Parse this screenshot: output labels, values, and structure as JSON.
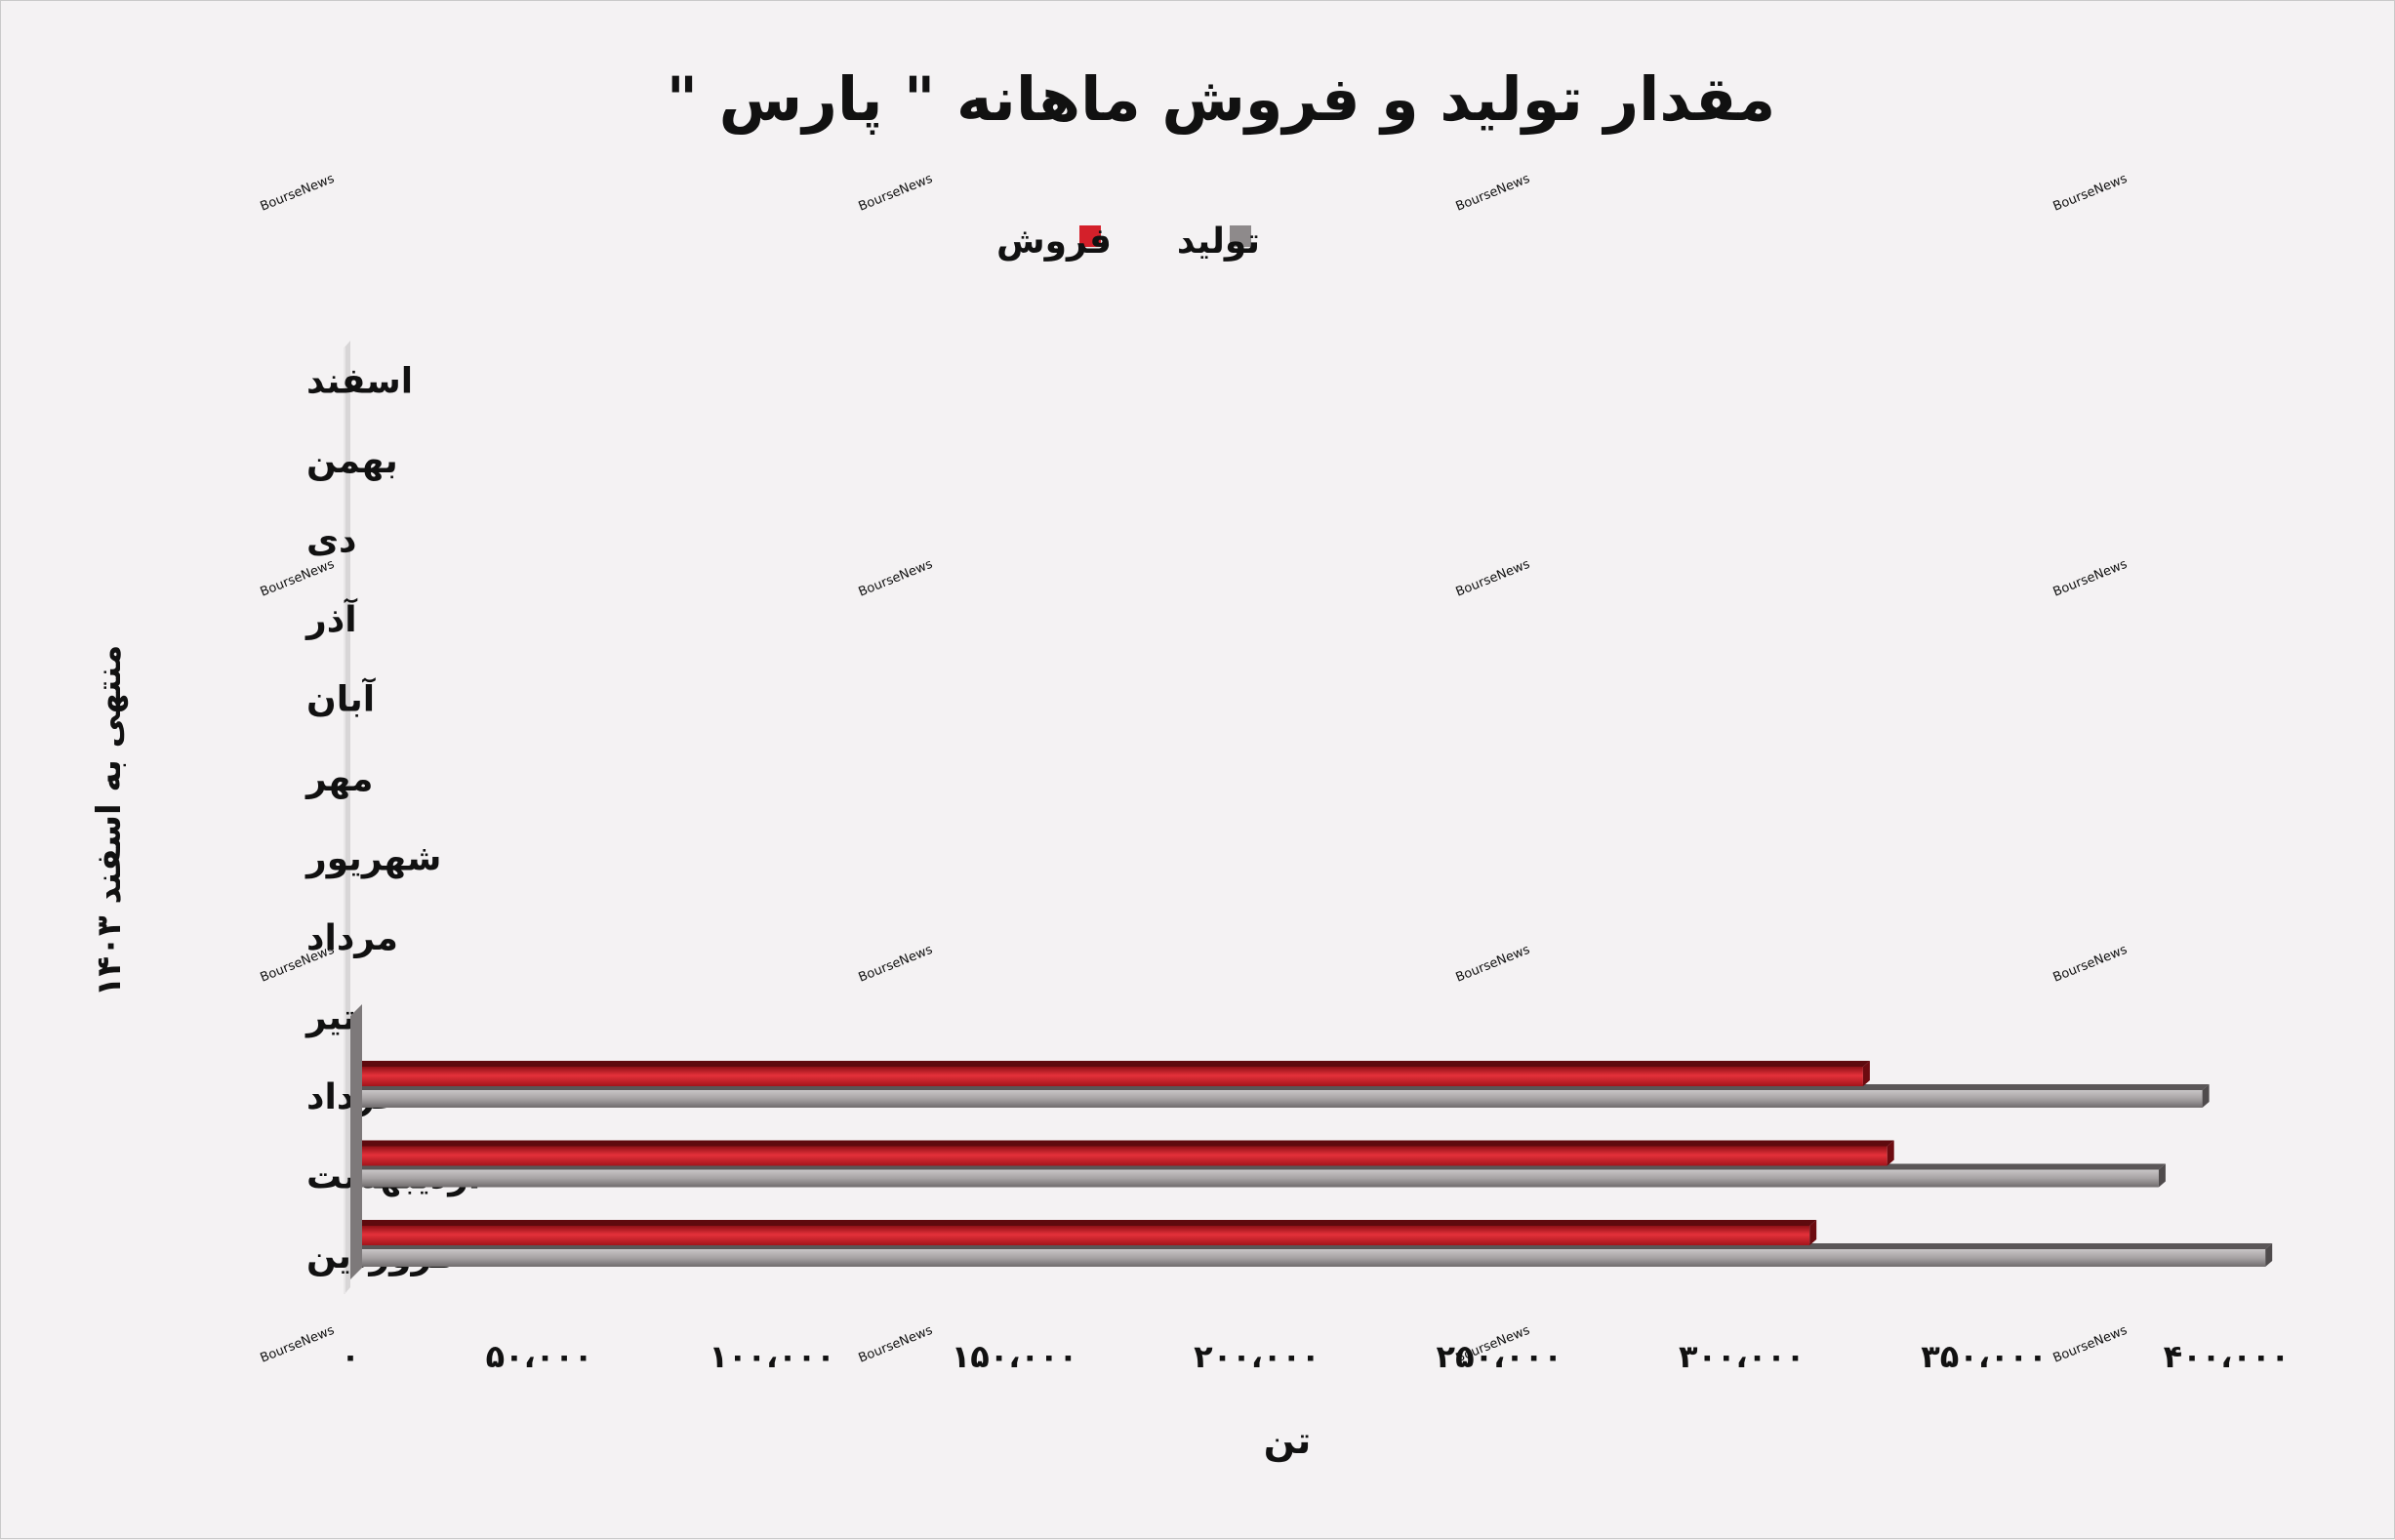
{
  "chart_data": {
    "type": "bar",
    "orientation": "horizontal",
    "title": "مقدار تولید و فروش ماهانه \" پارس \"",
    "ylabel": "منتهی به اسفند ۱۴۰۳",
    "xlabel": "تن",
    "categories": [
      "فروردین",
      "اردیبهشت",
      "خرداد",
      "تیر",
      "مرداد",
      "شهریور",
      "مهر",
      "آبان",
      "آذر",
      "دی",
      "بهمن",
      "اسفند"
    ],
    "series": [
      {
        "name": "تولید",
        "color": "#8e8a8b",
        "values": [
          395000,
          373000,
          382000,
          null,
          null,
          null,
          null,
          null,
          null,
          null,
          null,
          null
        ]
      },
      {
        "name": "فروش",
        "color": "#d4202a",
        "values": [
          301000,
          317000,
          312000,
          null,
          null,
          null,
          null,
          null,
          null,
          null,
          null,
          null
        ]
      }
    ],
    "xlim": [
      0,
      400000
    ],
    "xticks": [
      0,
      50000,
      100000,
      150000,
      200000,
      250000,
      300000,
      350000,
      400000
    ],
    "xtick_labels": [
      "۰",
      "۵۰،۰۰۰",
      "۱۰۰،۰۰۰",
      "۱۵۰،۰۰۰",
      "۲۰۰،۰۰۰",
      "۲۵۰،۰۰۰",
      "۳۰۰،۰۰۰",
      "۳۵۰،۰۰۰",
      "۴۰۰،۰۰۰"
    ],
    "legend_position": "top-center",
    "grid": false,
    "watermark": "BourseNews"
  }
}
